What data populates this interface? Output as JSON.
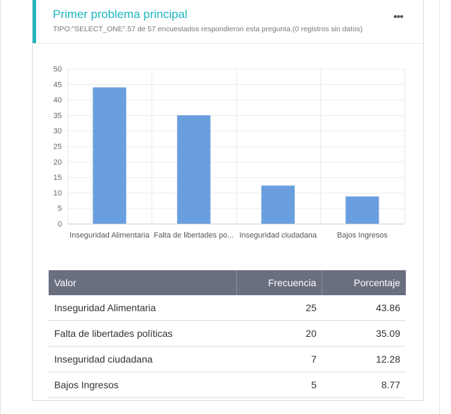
{
  "card": {
    "title": "Primer problema principal",
    "subtitle": "TIPO:\"SELECT_ONE\".57 de 57 encuestados respondieron esta pregunta.(0 registros sin datos)",
    "menu_icon": "more-horizontal-icon",
    "accent_color": "#1fb5c0"
  },
  "chart_data": {
    "type": "bar",
    "categories": [
      "Inseguridad Alimentaria",
      "Falta de libertades po...",
      "Inseguridad ciudadana",
      "Bajos Ingresos"
    ],
    "values": [
      44,
      35,
      12.3,
      8.8
    ],
    "ylim": [
      0,
      50
    ],
    "yticks": [
      0,
      5,
      10,
      15,
      20,
      25,
      30,
      35,
      40,
      45,
      50
    ],
    "bar_color": "#6a9fdf",
    "grid": true,
    "legend": "none"
  },
  "table": {
    "headers": [
      "Valor",
      "Frecuencia",
      "Porcentaje"
    ],
    "rows": [
      [
        "Inseguridad Alimentaria",
        "25",
        "43.86"
      ],
      [
        "Falta de libertades políticas",
        "20",
        "35.09"
      ],
      [
        "Inseguridad ciudadana",
        "7",
        "12.28"
      ],
      [
        "Bajos Ingresos",
        "5",
        "8.77"
      ]
    ]
  }
}
